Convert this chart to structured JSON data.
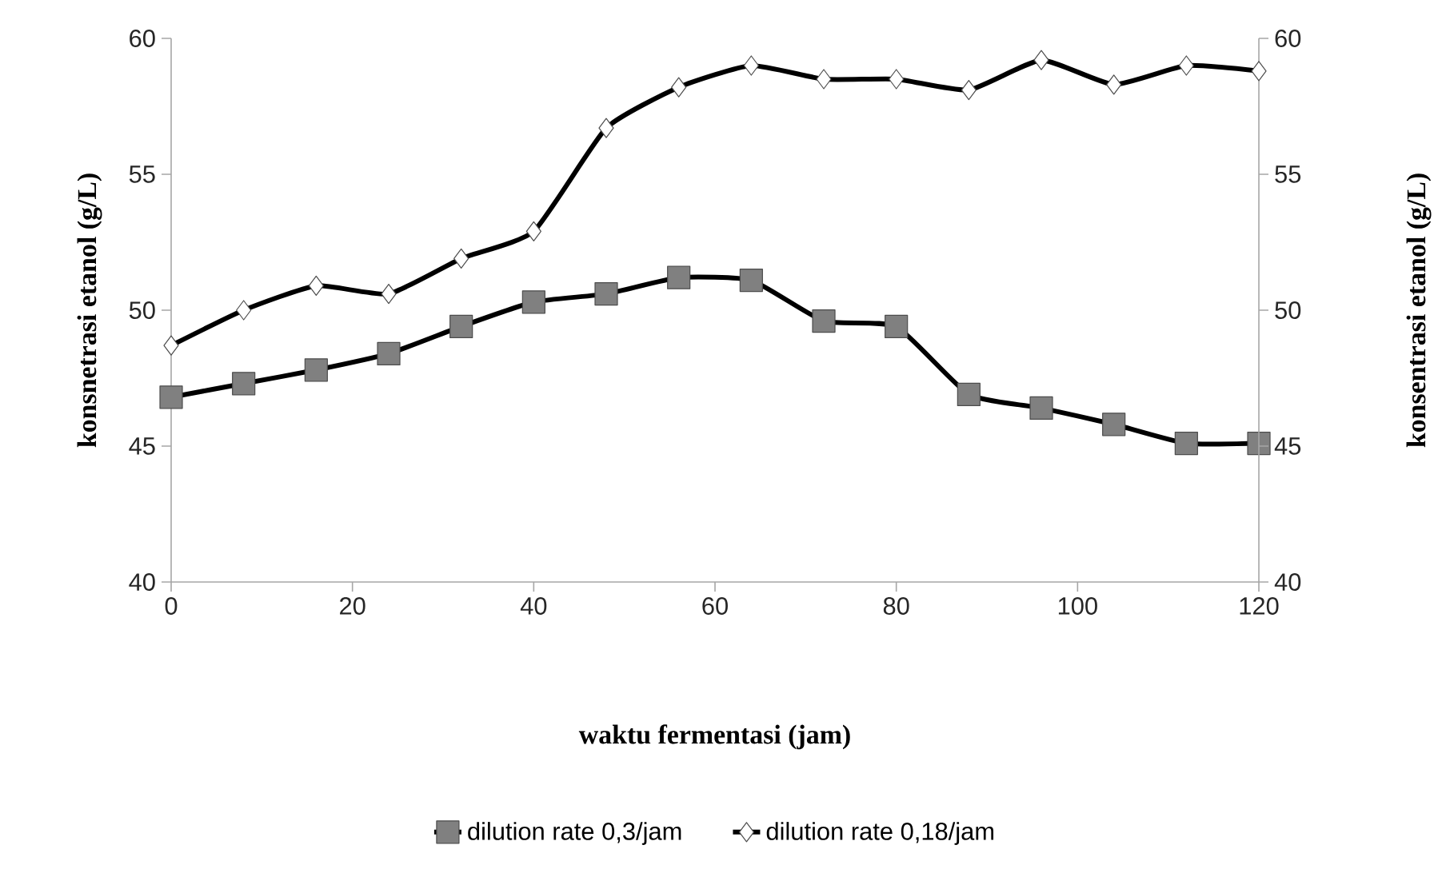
{
  "chart_data": {
    "type": "line",
    "xlabel": "waktu fermentasi (jam)",
    "ylabel": "konsnetrasi etanol (g/L)",
    "y2label": "konsentrasi etanol (g/L)",
    "x": [
      0,
      8,
      16,
      24,
      32,
      40,
      48,
      56,
      64,
      72,
      80,
      88,
      96,
      104,
      112,
      120
    ],
    "series": [
      {
        "name": "dilution rate 0,3/jam",
        "color": "#000000",
        "marker": "square",
        "values": [
          46.8,
          47.3,
          47.8,
          48.4,
          49.4,
          50.3,
          50.6,
          51.2,
          51.1,
          49.6,
          49.4,
          46.9,
          46.4,
          45.8,
          45.1,
          45.1
        ]
      },
      {
        "name": "dilution rate 0,18/jam",
        "color": "#000000",
        "marker": "diamond",
        "axis": "y2",
        "values": [
          48.7,
          50.0,
          50.9,
          50.6,
          51.9,
          52.9,
          56.7,
          58.2,
          59.0,
          58.5,
          58.5,
          58.1,
          59.2,
          58.3,
          59.0,
          58.8
        ]
      }
    ],
    "xlim": [
      0,
      120
    ],
    "xticks": [
      0,
      20,
      40,
      60,
      80,
      100,
      120
    ],
    "ylim": [
      40,
      60
    ],
    "yticks": [
      40,
      45,
      50,
      55,
      60
    ],
    "y2lim": [
      40,
      60
    ],
    "y2ticks": [
      40,
      45,
      50,
      55,
      60
    ],
    "grid": false,
    "legend": "bottom",
    "line_style": "solid"
  }
}
